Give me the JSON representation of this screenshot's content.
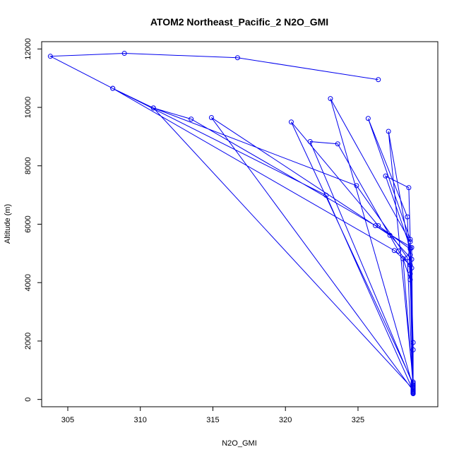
{
  "chart_data": {
    "type": "line",
    "title": "ATOM2 Northeast_Pacific_2 N2O_GMI",
    "xlabel": "N2O_GMI",
    "ylabel": "Altitude (m)",
    "xlim": [
      303.2,
      330.5
    ],
    "ylim": [
      -250,
      12250
    ],
    "xticks": [
      305,
      310,
      315,
      320,
      325
    ],
    "yticks": [
      0,
      2000,
      4000,
      6000,
      8000,
      10000,
      12000
    ],
    "grid": false,
    "series": [
      {
        "color": "#0000ee",
        "points": [
          [
            326.4,
            10950
          ],
          [
            316.7,
            11700
          ],
          [
            308.9,
            11850
          ],
          [
            303.8,
            11750
          ],
          [
            308.1,
            10650
          ],
          [
            310.9,
            9980
          ],
          [
            313.5,
            9600
          ],
          [
            326.2,
            5950
          ],
          [
            328.7,
            5200
          ],
          [
            328.8,
            200
          ],
          [
            328.8,
            300
          ],
          [
            314.9,
            9650
          ],
          [
            327.2,
            5620
          ],
          [
            328.7,
            4800
          ],
          [
            328.8,
            250
          ],
          [
            328.8,
            1700
          ],
          [
            328.4,
            6250
          ],
          [
            325.7,
            9620
          ],
          [
            328.6,
            5480
          ],
          [
            328.8,
            400
          ],
          [
            328.8,
            600
          ],
          [
            327.1,
            9180
          ],
          [
            328.6,
            4950
          ],
          [
            328.8,
            500
          ],
          [
            328.8,
            1950
          ],
          [
            328.5,
            7250
          ],
          [
            326.9,
            7650
          ],
          [
            328.6,
            5200
          ],
          [
            328.8,
            300
          ],
          [
            322.8,
            6990
          ],
          [
            308.1,
            10650
          ],
          [
            327.5,
            5100
          ],
          [
            328.6,
            4600
          ],
          [
            328.8,
            350
          ],
          [
            328.8,
            500
          ],
          [
            321.7,
            8830
          ],
          [
            323.6,
            8750
          ],
          [
            327.8,
            5080
          ],
          [
            328.7,
            4500
          ],
          [
            328.8,
            220
          ],
          [
            328.8,
            420
          ],
          [
            323.1,
            10300
          ],
          [
            328.6,
            5400
          ],
          [
            328.6,
            4300
          ],
          [
            328.8,
            280
          ],
          [
            328.8,
            550
          ],
          [
            320.4,
            9500
          ],
          [
            326.4,
            5950
          ],
          [
            328.6,
            5150
          ],
          [
            328.8,
            250
          ],
          [
            328.8,
            350
          ],
          [
            310.9,
            9980
          ],
          [
            324.9,
            7320
          ],
          [
            328.4,
            4850
          ],
          [
            328.8,
            200
          ],
          [
            328.8,
            450
          ],
          [
            328.1,
            4820
          ],
          [
            328.6,
            4100
          ],
          [
            328.8,
            300
          ]
        ]
      }
    ]
  }
}
